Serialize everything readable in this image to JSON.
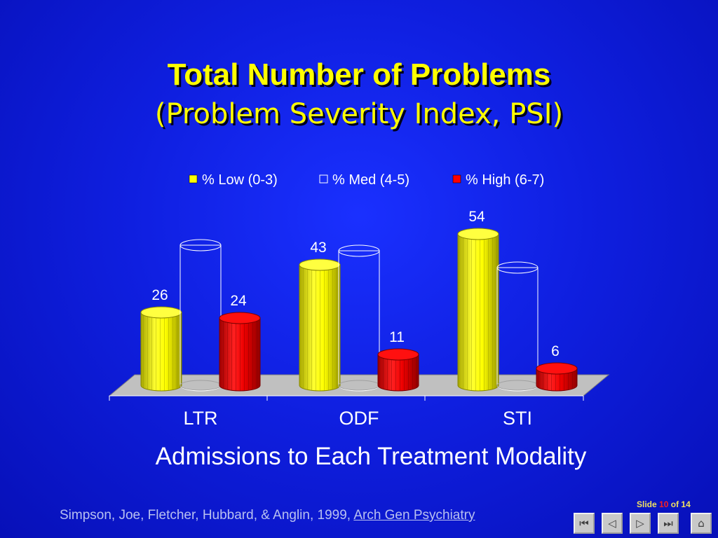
{
  "slide": {
    "title_line1": "Total Number of Problems",
    "title_line2": "(Problem Severity Index, PSI)",
    "subtitle": "Admissions to Each Treatment Modality",
    "citation_prefix": "Simpson, Joe, Fletcher, Hubbard, & Anglin, 1999, ",
    "citation_journal": "Arch Gen Psychiatry",
    "slide_word": "Slide",
    "slide_current": "10",
    "slide_of": "of 14"
  },
  "nav": {
    "first_icon": "first-slide-icon",
    "prev_icon": "previous-slide-icon",
    "next_icon": "next-slide-icon",
    "last_icon": "last-slide-icon",
    "home_icon": "home-icon"
  },
  "chart_data": {
    "type": "bar",
    "categories": [
      "LTR",
      "ODF",
      "STI"
    ],
    "series": [
      {
        "name": "% Low (0-3)",
        "values": [
          26,
          43,
          54
        ],
        "color": "#ffff00",
        "labels": [
          "26",
          "43",
          "54"
        ]
      },
      {
        "name": "% Med (4-5)",
        "values": [
          50,
          48,
          42
        ],
        "color": "#ffffff",
        "labels": [
          "",
          "",
          ""
        ]
      },
      {
        "name": "% High (6-7)",
        "values": [
          24,
          11,
          6
        ],
        "color": "#ff0000",
        "labels": [
          "24",
          "11",
          "6"
        ]
      }
    ],
    "ylim": [
      0,
      60
    ],
    "legend_position": "top",
    "grid": false
  }
}
